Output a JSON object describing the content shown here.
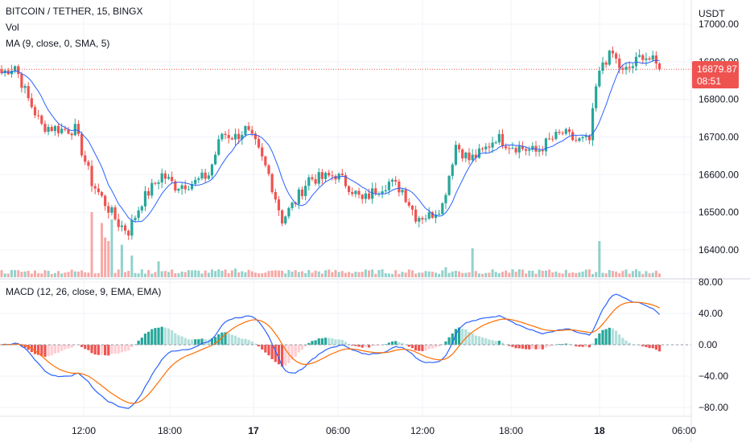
{
  "header": {
    "symbol": "BITCOIN / TETHER, 15, BINGX",
    "vol_label": "Vol",
    "ma_label": "MA (9, close, 0, SMA, 5)",
    "macd_label": "MACD (12, 26, close, 9, EMA, EMA)",
    "currency": "USDT"
  },
  "price_tag": {
    "price": "16879.87",
    "countdown": "08:51"
  },
  "colors": {
    "up": "#26a69a",
    "down": "#ef5350",
    "ma": "#2962ff",
    "macd": "#2962ff",
    "signal": "#ff6d00",
    "up_hist_strong": "#26a69a",
    "up_hist_weak": "#b2dfdb",
    "down_hist_strong": "#ef5350",
    "down_hist_weak": "#ffcdd2"
  },
  "chart_data": [
    {
      "type": "candlestick",
      "title": "BITCOIN / TETHER, 15, BINGX",
      "y_ticks": [
        "17000.00",
        "16900.00",
        "16800.00",
        "16700.00",
        "16600.00",
        "16500.00",
        "16400.00"
      ],
      "ylim": [
        16360,
        17040
      ],
      "x_ticks": [
        "12:00",
        "18:00",
        "17",
        "06:00",
        "12:00",
        "18:00",
        "18",
        "06:00"
      ],
      "last_price": 16879.87,
      "waypoints": [
        [
          0,
          16870
        ],
        [
          4,
          16890
        ],
        [
          8,
          16800
        ],
        [
          12,
          16730
        ],
        [
          18,
          16720
        ],
        [
          22,
          16720
        ],
        [
          27,
          16580
        ],
        [
          32,
          16510
        ],
        [
          35,
          16470
        ],
        [
          38,
          16450
        ],
        [
          42,
          16530
        ],
        [
          48,
          16600
        ],
        [
          52,
          16570
        ],
        [
          58,
          16580
        ],
        [
          62,
          16600
        ],
        [
          66,
          16710
        ],
        [
          70,
          16700
        ],
        [
          73,
          16720
        ],
        [
          76,
          16680
        ],
        [
          80,
          16600
        ],
        [
          84,
          16480
        ],
        [
          88,
          16530
        ],
        [
          92,
          16590
        ],
        [
          96,
          16590
        ],
        [
          100,
          16600
        ],
        [
          104,
          16570
        ],
        [
          108,
          16530
        ],
        [
          112,
          16560
        ],
        [
          116,
          16580
        ],
        [
          120,
          16560
        ],
        [
          124,
          16490
        ],
        [
          128,
          16490
        ],
        [
          132,
          16520
        ],
        [
          136,
          16680
        ],
        [
          140,
          16640
        ],
        [
          144,
          16660
        ],
        [
          148,
          16700
        ],
        [
          152,
          16680
        ],
        [
          156,
          16670
        ],
        [
          160,
          16660
        ],
        [
          164,
          16690
        ],
        [
          168,
          16710
        ],
        [
          172,
          16690
        ],
        [
          176,
          16690
        ],
        [
          178,
          16830
        ],
        [
          180,
          16900
        ],
        [
          183,
          16920
        ],
        [
          186,
          16870
        ],
        [
          189,
          16890
        ],
        [
          192,
          16920
        ],
        [
          195,
          16900
        ],
        [
          197,
          16880
        ]
      ]
    },
    {
      "type": "macd",
      "title": "MACD (12, 26, close, 9, EMA, EMA)",
      "y_ticks": [
        "80.00",
        "40.00",
        "0.00",
        "−40.00",
        "−80.00"
      ],
      "ylim": [
        -90,
        80
      ],
      "series": [
        {
          "name": "MACD"
        },
        {
          "name": "Signal"
        },
        {
          "name": "Histogram"
        }
      ]
    }
  ]
}
